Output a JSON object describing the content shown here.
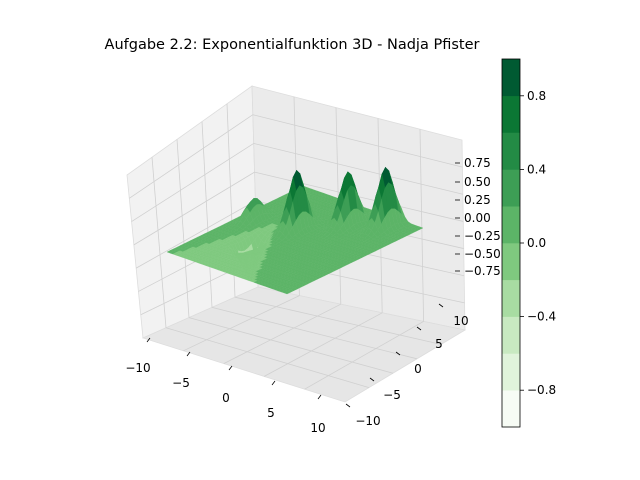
{
  "chart_data": {
    "type": "surface3d",
    "title": "Aufgabe 2.2: Exponentialfunktion 3D - Nadja Pfister",
    "x_ticks": [
      "−10",
      "−5",
      "0",
      "5",
      "10"
    ],
    "y_ticks": [
      "−10",
      "−5",
      "0",
      "5",
      "10"
    ],
    "z_ticks": [
      "−0.75",
      "−0.50",
      "−0.25",
      "0.00",
      "0.25",
      "0.50",
      "0.75"
    ],
    "xlim": [
      -10,
      10
    ],
    "ylim": [
      -10,
      10
    ],
    "zlim": [
      -1,
      1
    ],
    "colormap": "Greens",
    "colorbar": {
      "levels": [
        -1.0,
        -0.8,
        -0.6,
        -0.4,
        -0.2,
        0.0,
        0.2,
        0.4,
        0.6,
        0.8,
        1.0
      ],
      "tick_labels": [
        "−0.8",
        "−0.4",
        "0.0",
        "0.4",
        "0.8"
      ],
      "colors": [
        "#f7fcf5",
        "#e0f3db",
        "#c8e9c1",
        "#a8dca2",
        "#7fc97f",
        "#5cb467",
        "#3d9e55",
        "#238b45",
        "#0b7734",
        "#005a32"
      ]
    },
    "surface_peaks": [
      {
        "x": -8,
        "y": 1,
        "z": 0.35
      },
      {
        "x": -2,
        "y": 2,
        "z": 0.95
      },
      {
        "x": 2,
        "y": 6,
        "z": 0.85
      },
      {
        "x": 6,
        "y": 8,
        "z": 0.95
      },
      {
        "x": -4,
        "y": -3,
        "z": -0.55
      }
    ],
    "grid": true
  }
}
